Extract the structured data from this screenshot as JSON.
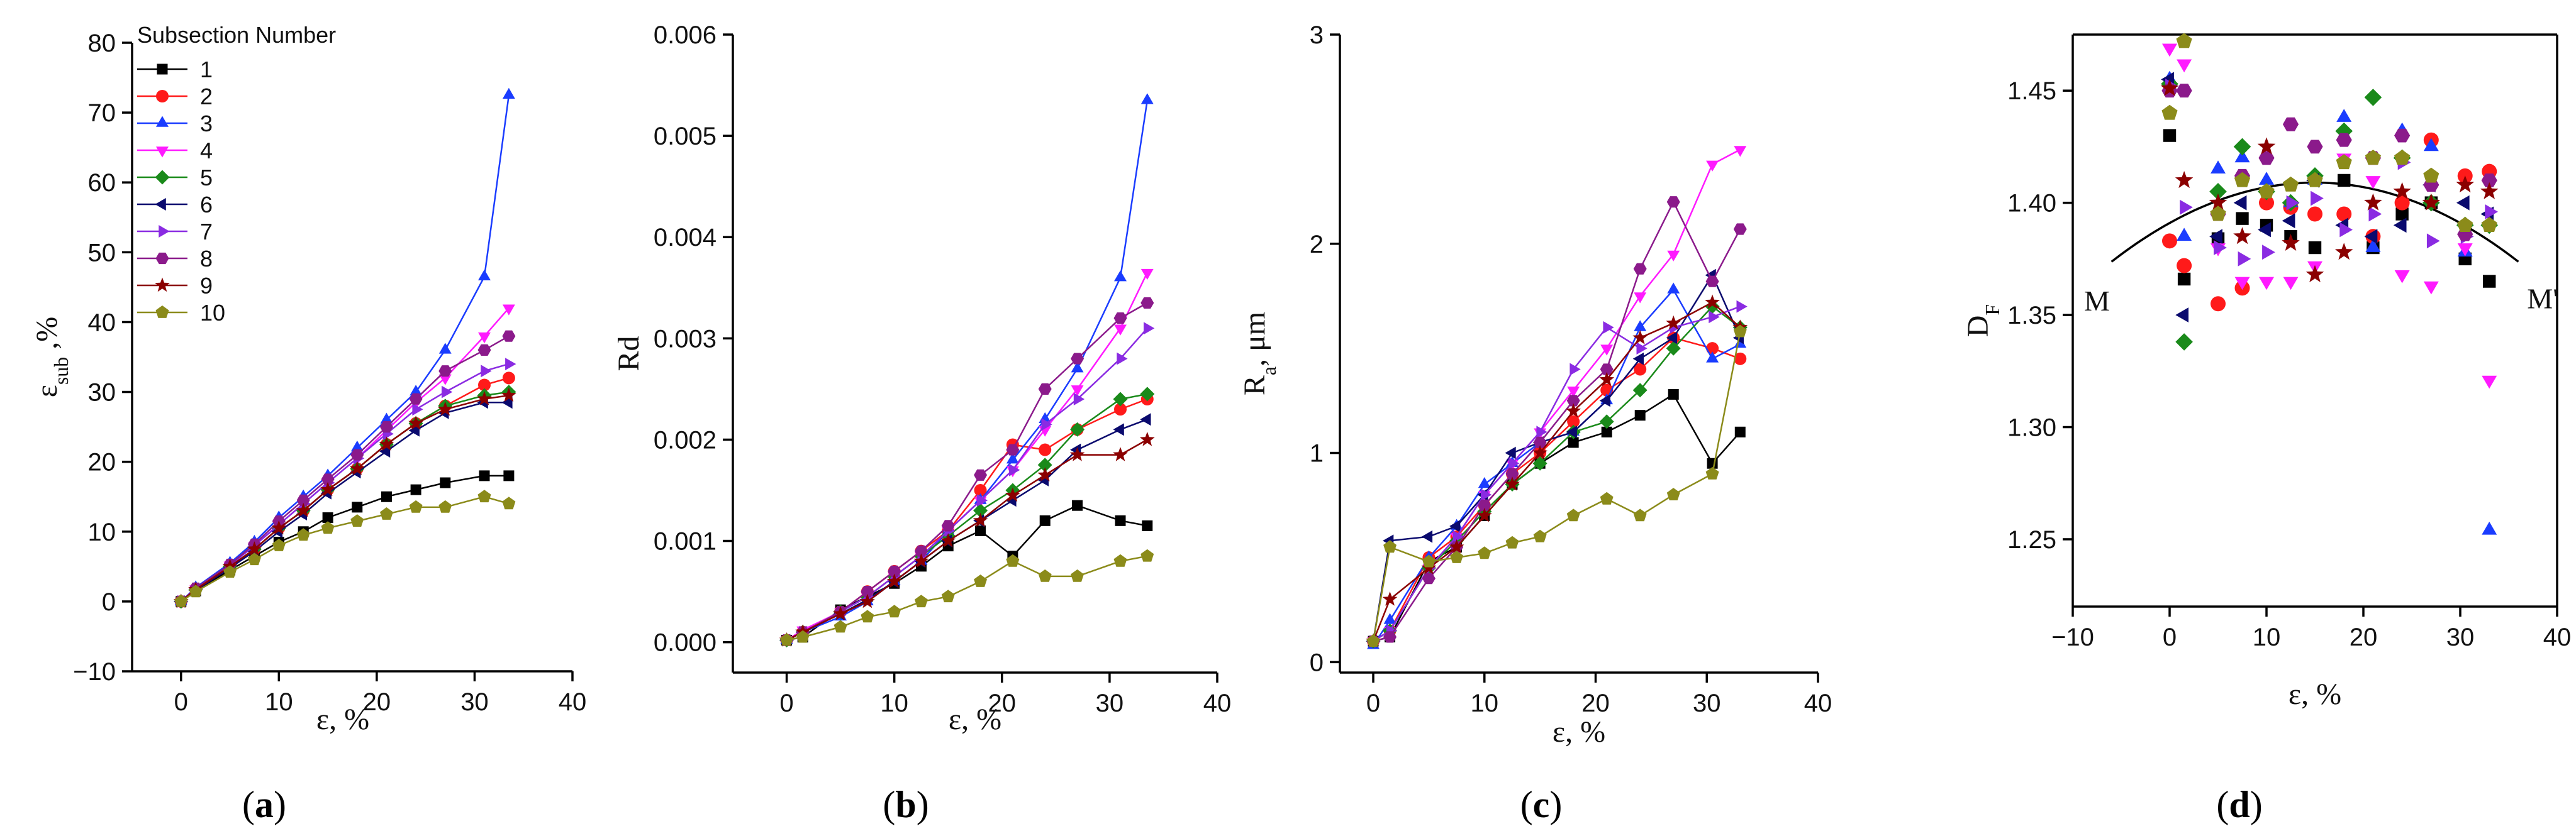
{
  "series_names": [
    "1",
    "2",
    "3",
    "4",
    "5",
    "6",
    "7",
    "8",
    "9",
    "10"
  ],
  "series_styles": [
    {
      "color": "#000000",
      "marker": "square"
    },
    {
      "color": "#ff1a1a",
      "marker": "circle"
    },
    {
      "color": "#1a3cff",
      "marker": "triangle-up"
    },
    {
      "color": "#ff1aff",
      "marker": "triangle-down"
    },
    {
      "color": "#1a8a1a",
      "marker": "diamond"
    },
    {
      "color": "#0a0a6e",
      "marker": "triangle-left"
    },
    {
      "color": "#8a2be2",
      "marker": "triangle-right"
    },
    {
      "color": "#8b1a8b",
      "marker": "hexagon"
    },
    {
      "color": "#8b0000",
      "marker": "star"
    },
    {
      "color": "#8b8b1a",
      "marker": "pentagon"
    }
  ],
  "chart_data": [
    {
      "type": "line",
      "panel_label": "a",
      "title": "",
      "xlabel": "ε, %",
      "ylabel_main": "ε",
      "ylabel_sub": "sub",
      "ylabel_suffix": " ,%",
      "xlim": [
        -5,
        40
      ],
      "ylim": [
        -10,
        80
      ],
      "xticks": [
        0,
        10,
        20,
        30,
        40
      ],
      "xtick_labels": [
        "0",
        "10",
        "20",
        "30",
        "40"
      ],
      "yticks": [
        -10,
        0,
        10,
        20,
        30,
        40,
        50,
        60,
        70,
        80
      ],
      "ytick_labels": [
        "−10",
        "0",
        "10",
        "20",
        "30",
        "40",
        "50",
        "60",
        "70",
        "80"
      ],
      "legend_title": "Subsection Number",
      "legend_position": "top-left",
      "x": [
        0,
        1.5,
        5,
        7.5,
        10,
        12.5,
        15,
        18,
        21,
        24,
        27,
        31,
        33.5
      ],
      "series": [
        {
          "name": "1",
          "values": [
            0,
            1.5,
            4.5,
            6.5,
            8.5,
            10,
            12,
            13.5,
            15,
            16,
            17,
            18,
            18
          ]
        },
        {
          "name": "2",
          "values": [
            0,
            1.8,
            5,
            7.5,
            10.5,
            13,
            16,
            19,
            22.5,
            25.5,
            28,
            31,
            32
          ]
        },
        {
          "name": "3",
          "values": [
            0,
            2,
            5.5,
            8.5,
            12,
            15,
            18,
            22,
            26,
            30,
            36,
            46.5,
            72.5
          ]
        },
        {
          "name": "4",
          "values": [
            0,
            1.8,
            5.2,
            8,
            11,
            14,
            17,
            20.5,
            24.5,
            28.5,
            32,
            38,
            42
          ]
        },
        {
          "name": "5",
          "values": [
            0,
            1.7,
            5,
            7.5,
            10.5,
            13,
            16,
            19,
            22.5,
            25.5,
            28,
            29.5,
            30
          ]
        },
        {
          "name": "6",
          "values": [
            0,
            1.6,
            4.8,
            7.2,
            10,
            12.5,
            15.5,
            18.5,
            21.5,
            24.5,
            27,
            28.5,
            28.5
          ]
        },
        {
          "name": "7",
          "values": [
            0,
            1.8,
            5.2,
            8,
            11,
            14,
            17,
            20.5,
            24,
            27.5,
            30,
            33,
            34
          ]
        },
        {
          "name": "8",
          "values": [
            0,
            1.9,
            5.3,
            8.2,
            11.5,
            14.5,
            17.5,
            21,
            25,
            29,
            33,
            36,
            38
          ]
        },
        {
          "name": "9",
          "values": [
            0,
            1.7,
            5,
            7.5,
            10.5,
            13,
            16,
            19,
            22.5,
            25.5,
            27.5,
            29,
            29.5
          ]
        },
        {
          "name": "10",
          "values": [
            0,
            1.4,
            4.2,
            6,
            8,
            9.5,
            10.5,
            11.5,
            12.5,
            13.5,
            13.5,
            15,
            14
          ]
        }
      ]
    },
    {
      "type": "line",
      "panel_label": "b",
      "title": "",
      "xlabel": "ε, %",
      "ylabel": "Rd",
      "xlim": [
        -5,
        40
      ],
      "ylim": [
        -0.0003,
        0.006
      ],
      "xticks": [
        0,
        10,
        20,
        30,
        40
      ],
      "xtick_labels": [
        "0",
        "10",
        "20",
        "30",
        "40"
      ],
      "yticks": [
        0,
        0.001,
        0.002,
        0.003,
        0.004,
        0.005,
        0.006
      ],
      "ytick_labels": [
        "0.000",
        "0.001",
        "0.002",
        "0.003",
        "0.004",
        "0.005",
        "0.006"
      ],
      "x": [
        0,
        1.5,
        5,
        7.5,
        10,
        12.5,
        15,
        18,
        21,
        24,
        27,
        31,
        33.5
      ],
      "series": [
        {
          "name": "1",
          "values": [
            2e-05,
            5e-05,
            0.00032,
            0.00045,
            0.00058,
            0.00075,
            0.00095,
            0.0011,
            0.00085,
            0.0012,
            0.00135,
            0.0012,
            0.00115
          ]
        },
        {
          "name": "2",
          "values": [
            2e-05,
            0.0001,
            0.0003,
            0.0005,
            0.0007,
            0.0009,
            0.0011,
            0.0015,
            0.00195,
            0.0019,
            0.0021,
            0.0023,
            0.0024
          ]
        },
        {
          "name": "3",
          "values": [
            2e-05,
            0.0001,
            0.00025,
            0.0004,
            0.0006,
            0.0008,
            0.0011,
            0.0014,
            0.0018,
            0.0022,
            0.0027,
            0.0036,
            0.00535
          ]
        },
        {
          "name": "4",
          "values": [
            2e-05,
            0.00012,
            0.0003,
            0.00045,
            0.00065,
            0.00085,
            0.0011,
            0.0014,
            0.0017,
            0.0021,
            0.0025,
            0.0031,
            0.00365
          ]
        },
        {
          "name": "5",
          "values": [
            2e-05,
            0.0001,
            0.0003,
            0.00045,
            0.00065,
            0.00085,
            0.00105,
            0.0013,
            0.0015,
            0.00175,
            0.0021,
            0.0024,
            0.00245
          ]
        },
        {
          "name": "6",
          "values": [
            2e-05,
            0.0001,
            0.00028,
            0.00042,
            0.0006,
            0.0008,
            0.001,
            0.0012,
            0.0014,
            0.0016,
            0.0019,
            0.0021,
            0.0022
          ]
        },
        {
          "name": "7",
          "values": [
            2e-05,
            0.0001,
            0.0003,
            0.00045,
            0.00065,
            0.00085,
            0.0011,
            0.0014,
            0.0017,
            0.00215,
            0.0024,
            0.0028,
            0.0031
          ]
        },
        {
          "name": "8",
          "values": [
            2e-05,
            0.0001,
            0.0003,
            0.0005,
            0.0007,
            0.0009,
            0.00115,
            0.00165,
            0.0019,
            0.0025,
            0.0028,
            0.0032,
            0.00335
          ]
        },
        {
          "name": "9",
          "values": [
            2e-05,
            0.0001,
            0.00028,
            0.0004,
            0.0006,
            0.0008,
            0.001,
            0.0012,
            0.00145,
            0.00165,
            0.00185,
            0.00185,
            0.002
          ]
        },
        {
          "name": "10",
          "values": [
            2e-05,
            5e-05,
            0.00015,
            0.00025,
            0.0003,
            0.0004,
            0.00045,
            0.0006,
            0.0008,
            0.00065,
            0.00065,
            0.0008,
            0.00085
          ]
        }
      ]
    },
    {
      "type": "line",
      "panel_label": "c",
      "title": "",
      "xlabel": "ε, %",
      "ylabel_main": "R",
      "ylabel_sub": "a",
      "ylabel_suffix": ", μm",
      "xlim": [
        -3,
        40
      ],
      "ylim": [
        -0.05,
        3
      ],
      "xticks": [
        0,
        10,
        20,
        30,
        40
      ],
      "xtick_labels": [
        "0",
        "10",
        "20",
        "30",
        "40"
      ],
      "yticks": [
        0,
        1,
        2,
        3
      ],
      "ytick_labels": [
        "0",
        "1",
        "2",
        "3"
      ],
      "x": [
        0,
        1.5,
        5,
        7.5,
        10,
        12.5,
        15,
        18,
        21,
        24,
        27,
        30.5,
        33
      ],
      "series": [
        {
          "name": "1",
          "values": [
            0.1,
            0.12,
            0.48,
            0.55,
            0.7,
            0.85,
            0.95,
            1.05,
            1.1,
            1.18,
            1.28,
            0.95,
            1.1
          ]
        },
        {
          "name": "2",
          "values": [
            0.1,
            0.15,
            0.5,
            0.6,
            0.75,
            0.9,
            1.0,
            1.15,
            1.3,
            1.4,
            1.55,
            1.5,
            1.45
          ]
        },
        {
          "name": "3",
          "values": [
            0.08,
            0.2,
            0.5,
            0.65,
            0.85,
            0.95,
            1.05,
            1.1,
            1.25,
            1.6,
            1.78,
            1.45,
            1.52
          ]
        },
        {
          "name": "4",
          "values": [
            0.1,
            0.15,
            0.45,
            0.6,
            0.8,
            0.95,
            1.1,
            1.3,
            1.5,
            1.75,
            1.95,
            2.38,
            2.45
          ]
        },
        {
          "name": "5",
          "values": [
            0.1,
            0.15,
            0.45,
            0.58,
            0.72,
            0.85,
            0.95,
            1.1,
            1.15,
            1.3,
            1.5,
            1.7,
            1.6
          ]
        },
        {
          "name": "6",
          "values": [
            0.1,
            0.58,
            0.6,
            0.65,
            0.8,
            1.0,
            1.05,
            1.1,
            1.25,
            1.45,
            1.55,
            1.85,
            1.55
          ]
        },
        {
          "name": "7",
          "values": [
            0.1,
            0.15,
            0.45,
            0.6,
            0.8,
            0.95,
            1.1,
            1.4,
            1.6,
            1.5,
            1.6,
            1.65,
            1.7
          ]
        },
        {
          "name": "8",
          "values": [
            0.1,
            0.12,
            0.4,
            0.55,
            0.75,
            0.9,
            1.05,
            1.25,
            1.4,
            1.88,
            2.2,
            1.82,
            2.07
          ]
        },
        {
          "name": "9",
          "values": [
            0.1,
            0.3,
            0.45,
            0.55,
            0.7,
            0.85,
            1.0,
            1.2,
            1.35,
            1.55,
            1.62,
            1.72,
            1.6
          ]
        },
        {
          "name": "10",
          "values": [
            0.1,
            0.55,
            0.48,
            0.5,
            0.52,
            0.57,
            0.6,
            0.7,
            0.78,
            0.7,
            0.8,
            0.9,
            1.58
          ]
        }
      ]
    },
    {
      "type": "scatter",
      "panel_label": "d",
      "title": "",
      "xlabel": "ε, %",
      "ylabel_main": "D",
      "ylabel_sub": "F",
      "xlim": [
        -10,
        40
      ],
      "ylim": [
        1.22,
        1.475
      ],
      "xticks": [
        -10,
        0,
        10,
        20,
        30,
        40
      ],
      "xtick_labels": [
        "−10",
        "0",
        "10",
        "20",
        "30",
        "40"
      ],
      "yticks": [
        1.25,
        1.3,
        1.35,
        1.4,
        1.45
      ],
      "ytick_labels": [
        "1.25",
        "1.30",
        "1.35",
        "1.40",
        "1.45"
      ],
      "curve_labels": [
        "M",
        "M'"
      ],
      "fit_curve": {
        "x_start": -6,
        "x_end": 36,
        "peak_x": 15,
        "peak_y": 1.409,
        "curvature": 8e-05
      },
      "x": [
        0,
        1.5,
        5,
        7.5,
        10,
        12.5,
        15,
        18,
        21,
        24,
        27,
        30.5,
        33
      ],
      "series": [
        {
          "name": "1",
          "values": [
            1.43,
            1.366,
            1.384,
            1.393,
            1.39,
            1.385,
            1.38,
            1.41,
            1.38,
            1.395,
            1.4,
            1.375,
            1.365
          ]
        },
        {
          "name": "2",
          "values": [
            1.383,
            1.372,
            1.355,
            1.362,
            1.4,
            1.398,
            1.395,
            1.395,
            1.385,
            1.4,
            1.428,
            1.412,
            1.414
          ]
        },
        {
          "name": "3",
          "values": [
            1.455,
            1.385,
            1.415,
            1.42,
            1.41,
            1.4,
            1.41,
            1.438,
            1.38,
            1.432,
            1.425,
            1.378,
            1.254
          ]
        },
        {
          "name": "4",
          "values": [
            1.469,
            1.462,
            1.38,
            1.365,
            1.365,
            1.365,
            1.372,
            1.42,
            1.41,
            1.368,
            1.363,
            1.38,
            1.321
          ]
        },
        {
          "name": "5",
          "values": [
            1.453,
            1.338,
            1.405,
            1.425,
            1.405,
            1.4,
            1.412,
            1.432,
            1.447,
            1.42,
            1.4,
            1.39,
            1.39
          ]
        },
        {
          "name": "6",
          "values": [
            1.455,
            1.35,
            1.385,
            1.4,
            1.388,
            1.392,
            1.41,
            1.39,
            1.385,
            1.39,
            1.408,
            1.4,
            1.395
          ]
        },
        {
          "name": "7",
          "values": [
            1.452,
            1.398,
            1.38,
            1.375,
            1.378,
            1.4,
            1.402,
            1.388,
            1.395,
            1.418,
            1.383,
            1.385,
            1.396
          ]
        },
        {
          "name": "8",
          "values": [
            1.45,
            1.45,
            1.395,
            1.412,
            1.42,
            1.435,
            1.425,
            1.428,
            1.42,
            1.43,
            1.408,
            1.386,
            1.41
          ]
        },
        {
          "name": "9",
          "values": [
            1.451,
            1.41,
            1.4,
            1.385,
            1.425,
            1.382,
            1.368,
            1.378,
            1.4,
            1.405,
            1.4,
            1.408,
            1.405
          ]
        },
        {
          "name": "10",
          "values": [
            1.44,
            1.472,
            1.395,
            1.41,
            1.405,
            1.408,
            1.41,
            1.418,
            1.42,
            1.42,
            1.412,
            1.39,
            1.39
          ]
        }
      ]
    }
  ]
}
